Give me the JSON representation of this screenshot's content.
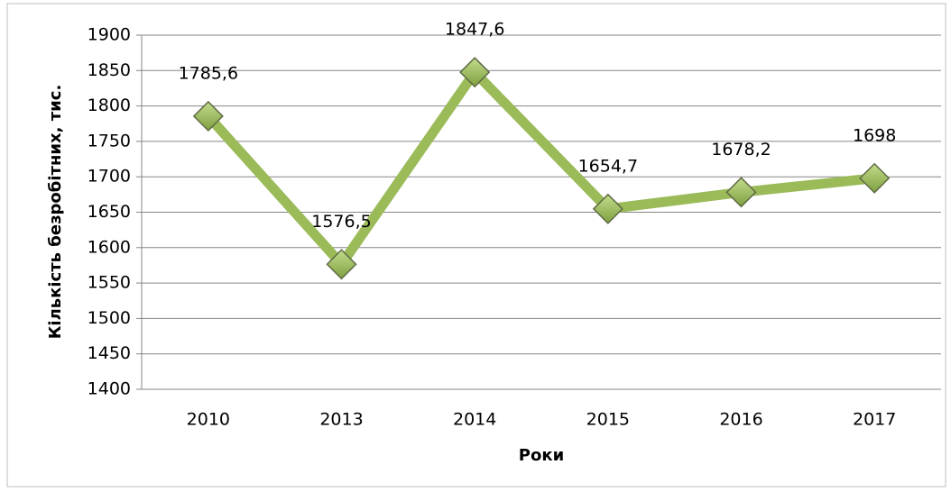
{
  "chart_data": {
    "type": "line",
    "x_label": "Роки",
    "y_label": "Кількість безробітних, тис.",
    "categories": [
      "2010",
      "2013",
      "2014",
      "2015",
      "2016",
      "2017"
    ],
    "series": [
      {
        "name": "Кількість безробітних",
        "color": "#9bbb59",
        "values": [
          1785.6,
          1576.5,
          1847.6,
          1654.7,
          1678.2,
          1698
        ],
        "value_labels": [
          "1785,6",
          "1576,5",
          "1847,6",
          "1654,7",
          "1678,2",
          "1698"
        ]
      }
    ],
    "ylim": [
      1400,
      1900
    ],
    "yticks": [
      1400,
      1450,
      1500,
      1550,
      1600,
      1650,
      1700,
      1750,
      1800,
      1850,
      1900
    ],
    "grid": true
  }
}
